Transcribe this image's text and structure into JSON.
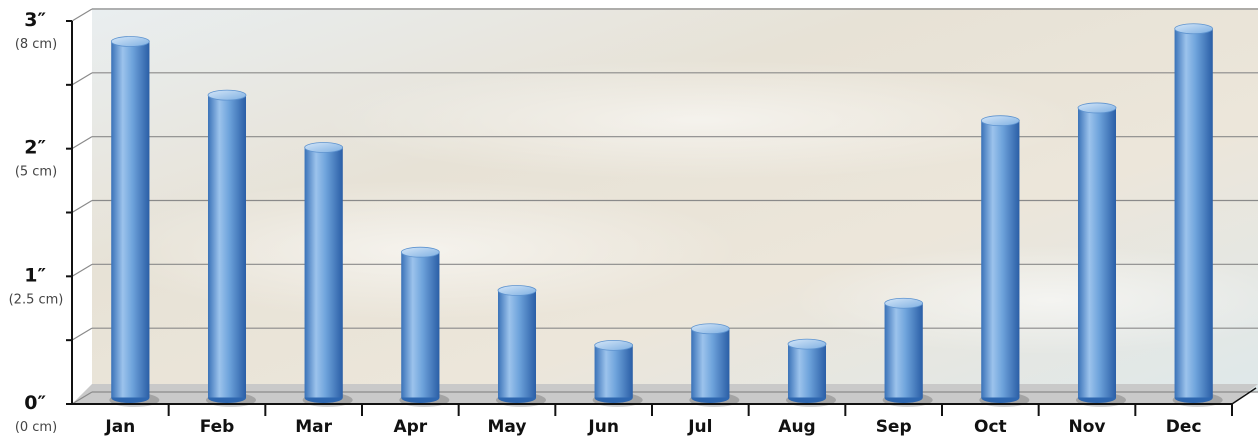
{
  "chart_data": {
    "type": "bar",
    "title": "",
    "xlabel": "",
    "ylabel": "",
    "categories": [
      "Jan",
      "Feb",
      "Mar",
      "Apr",
      "May",
      "Jun",
      "Jul",
      "Aug",
      "Sep",
      "Oct",
      "Nov",
      "Dec"
    ],
    "values": [
      2.8,
      2.38,
      1.97,
      1.15,
      0.85,
      0.42,
      0.55,
      0.43,
      0.75,
      2.18,
      2.28,
      2.9
    ],
    "unit": "inches",
    "ylim": [
      0,
      3
    ],
    "yticks": [
      {
        "value": 3,
        "label": "3″",
        "sublabel": "(8 cm)"
      },
      {
        "value": 2,
        "label": "2″",
        "sublabel": "(5 cm)"
      },
      {
        "value": 1,
        "label": "1″",
        "sublabel": "(2.5 cm)"
      },
      {
        "value": 0,
        "label": "0″",
        "sublabel": "(0 cm)"
      }
    ],
    "grid": true,
    "legend": "none",
    "colors": {
      "bar_light": "#b9d6f2",
      "bar_mid": "#6fa4dc",
      "bar_dark": "#2e67b0",
      "grid": "#8a8a8a",
      "floor": "#bdbdbd"
    }
  }
}
